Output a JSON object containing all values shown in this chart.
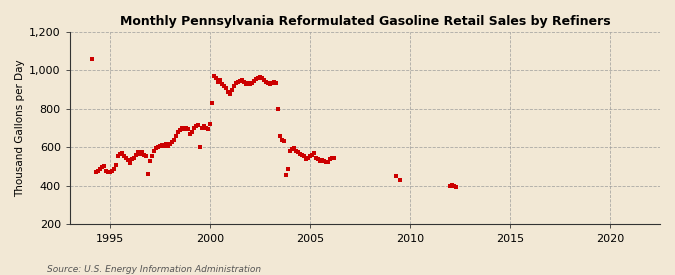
{
  "title": "Monthly Pennsylvania Reformulated Gasoline Retail Sales by Refiners",
  "ylabel": "Thousand Gallons per Day",
  "source": "Source: U.S. Energy Information Administration",
  "background_color": "#f2e8d5",
  "dot_color": "#cc0000",
  "xlim": [
    1993.0,
    2022.5
  ],
  "ylim": [
    200,
    1200
  ],
  "yticks": [
    200,
    400,
    600,
    800,
    1000,
    1200
  ],
  "xticks": [
    1995,
    2000,
    2005,
    2010,
    2015,
    2020
  ],
  "data": [
    [
      1994.1,
      1060
    ],
    [
      1994.3,
      475
    ],
    [
      1994.4,
      480
    ],
    [
      1994.5,
      490
    ],
    [
      1994.6,
      500
    ],
    [
      1994.7,
      505
    ],
    [
      1994.8,
      480
    ],
    [
      1994.9,
      470
    ],
    [
      1995.0,
      475
    ],
    [
      1995.1,
      480
    ],
    [
      1995.2,
      490
    ],
    [
      1995.3,
      510
    ],
    [
      1995.4,
      555
    ],
    [
      1995.5,
      565
    ],
    [
      1995.6,
      570
    ],
    [
      1995.7,
      555
    ],
    [
      1995.8,
      545
    ],
    [
      1995.9,
      535
    ],
    [
      1996.0,
      520
    ],
    [
      1996.1,
      540
    ],
    [
      1996.2,
      545
    ],
    [
      1996.3,
      560
    ],
    [
      1996.4,
      575
    ],
    [
      1996.5,
      565
    ],
    [
      1996.6,
      575
    ],
    [
      1996.7,
      560
    ],
    [
      1996.8,
      555
    ],
    [
      1996.9,
      460
    ],
    [
      1997.0,
      530
    ],
    [
      1997.1,
      555
    ],
    [
      1997.2,
      580
    ],
    [
      1997.3,
      595
    ],
    [
      1997.4,
      600
    ],
    [
      1997.5,
      610
    ],
    [
      1997.6,
      615
    ],
    [
      1997.7,
      610
    ],
    [
      1997.8,
      620
    ],
    [
      1997.9,
      605
    ],
    [
      1998.0,
      620
    ],
    [
      1998.1,
      630
    ],
    [
      1998.2,
      640
    ],
    [
      1998.3,
      660
    ],
    [
      1998.4,
      680
    ],
    [
      1998.5,
      690
    ],
    [
      1998.6,
      700
    ],
    [
      1998.7,
      695
    ],
    [
      1998.8,
      700
    ],
    [
      1998.9,
      695
    ],
    [
      1999.0,
      670
    ],
    [
      1999.1,
      680
    ],
    [
      1999.2,
      700
    ],
    [
      1999.3,
      710
    ],
    [
      1999.4,
      715
    ],
    [
      1999.5,
      600
    ],
    [
      1999.6,
      700
    ],
    [
      1999.7,
      710
    ],
    [
      1999.8,
      700
    ],
    [
      1999.9,
      695
    ],
    [
      2000.0,
      720
    ],
    [
      2000.1,
      830
    ],
    [
      2000.2,
      970
    ],
    [
      2000.3,
      960
    ],
    [
      2000.4,
      940
    ],
    [
      2000.5,
      950
    ],
    [
      2000.6,
      930
    ],
    [
      2000.7,
      920
    ],
    [
      2000.8,
      910
    ],
    [
      2000.9,
      890
    ],
    [
      2001.0,
      880
    ],
    [
      2001.1,
      900
    ],
    [
      2001.2,
      920
    ],
    [
      2001.3,
      935
    ],
    [
      2001.4,
      940
    ],
    [
      2001.5,
      945
    ],
    [
      2001.6,
      950
    ],
    [
      2001.7,
      940
    ],
    [
      2001.8,
      930
    ],
    [
      2001.9,
      935
    ],
    [
      2002.0,
      930
    ],
    [
      2002.1,
      935
    ],
    [
      2002.2,
      945
    ],
    [
      2002.3,
      955
    ],
    [
      2002.4,
      960
    ],
    [
      2002.5,
      965
    ],
    [
      2002.6,
      960
    ],
    [
      2002.7,
      950
    ],
    [
      2002.8,
      940
    ],
    [
      2002.9,
      935
    ],
    [
      2003.0,
      930
    ],
    [
      2003.1,
      935
    ],
    [
      2003.2,
      940
    ],
    [
      2003.3,
      935
    ],
    [
      2003.4,
      800
    ],
    [
      2003.5,
      660
    ],
    [
      2003.6,
      640
    ],
    [
      2003.7,
      635
    ],
    [
      2003.8,
      455
    ],
    [
      2003.9,
      490
    ],
    [
      2004.0,
      580
    ],
    [
      2004.1,
      590
    ],
    [
      2004.2,
      595
    ],
    [
      2004.3,
      580
    ],
    [
      2004.4,
      575
    ],
    [
      2004.5,
      565
    ],
    [
      2004.6,
      560
    ],
    [
      2004.7,
      555
    ],
    [
      2004.8,
      540
    ],
    [
      2004.9,
      545
    ],
    [
      2005.0,
      555
    ],
    [
      2005.1,
      560
    ],
    [
      2005.2,
      570
    ],
    [
      2005.3,
      545
    ],
    [
      2005.4,
      540
    ],
    [
      2005.5,
      530
    ],
    [
      2005.6,
      535
    ],
    [
      2005.7,
      530
    ],
    [
      2005.8,
      525
    ],
    [
      2005.9,
      525
    ],
    [
      2006.0,
      540
    ],
    [
      2006.1,
      545
    ],
    [
      2006.2,
      545
    ],
    [
      2009.3,
      450
    ],
    [
      2009.5,
      430
    ],
    [
      2012.0,
      400
    ],
    [
      2012.1,
      405
    ],
    [
      2012.2,
      400
    ],
    [
      2012.3,
      395
    ]
  ]
}
